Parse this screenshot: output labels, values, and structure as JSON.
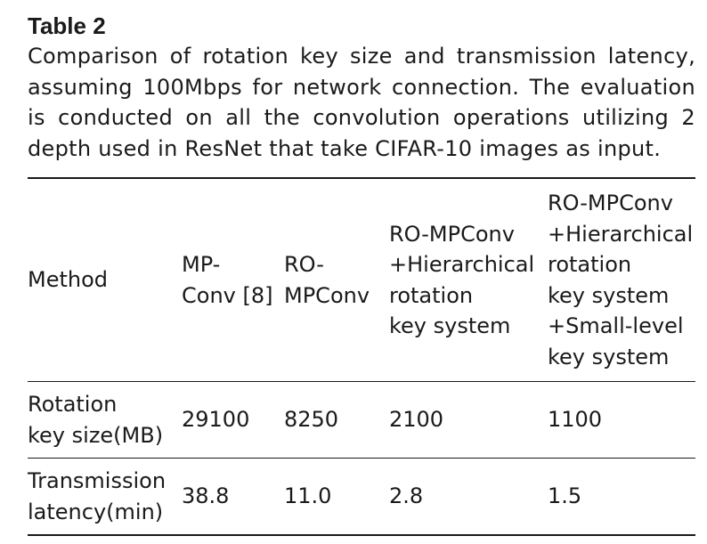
{
  "table_label": "Table 2",
  "caption": "Comparison of rotation key size and transmission latency, assuming 100Mbps for network connection. The evaluation is conducted on all the convolution operations utilizing 2 depth used in ResNet that take CIFAR-10 images as input.",
  "columns": [
    {
      "text": "Method"
    },
    {
      "text": "MP-\nConv [8]"
    },
    {
      "text": "RO-\nMPConv"
    },
    {
      "text": "RO-MPConv\n+Hierarchical\nrotation\nkey system"
    },
    {
      "text": "RO-MPConv\n+Hierarchical\nrotation\nkey system\n+Small-level\nkey system"
    }
  ],
  "rows": [
    {
      "label": "Rotation\nkey size(MB)",
      "values": [
        "29100",
        "8250",
        "2100",
        "1100"
      ]
    },
    {
      "label": "Transmission\nlatency(min)",
      "values": [
        "38.8",
        "11.0",
        "2.8",
        "1.5"
      ]
    }
  ]
}
